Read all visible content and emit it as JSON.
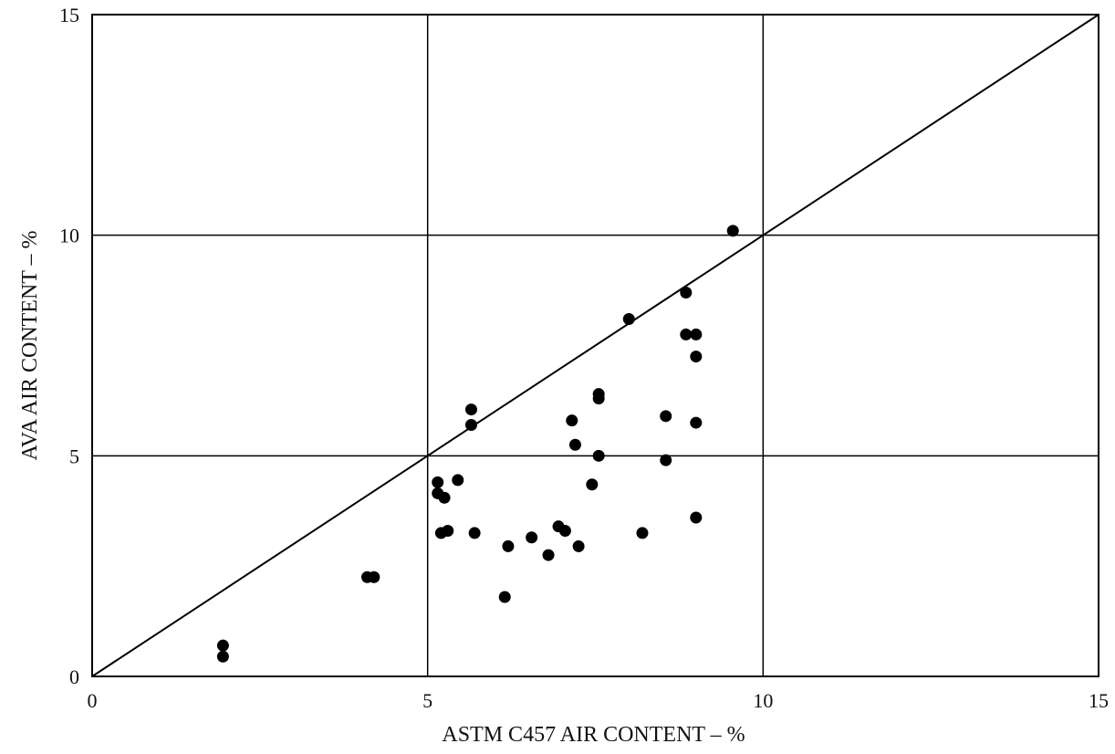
{
  "chart_data": {
    "type": "scatter",
    "title": "",
    "xlabel": "ASTM C457 AIR CONTENT – %",
    "ylabel": "AVA AIR CONTENT – %",
    "xlim": [
      0,
      15
    ],
    "ylim": [
      0,
      15
    ],
    "xticks": [
      "0",
      "5",
      "10",
      "15"
    ],
    "yticks": [
      "0",
      "5",
      "10",
      "15"
    ],
    "grid": true,
    "reference_line": {
      "x": [
        0,
        15
      ],
      "y": [
        0,
        15
      ]
    },
    "point_color": "#000000",
    "line_color": "#000000",
    "series": [
      {
        "points": [
          {
            "x": 1.95,
            "y": 0.45
          },
          {
            "x": 1.95,
            "y": 0.7
          },
          {
            "x": 4.1,
            "y": 2.25
          },
          {
            "x": 4.2,
            "y": 2.25
          },
          {
            "x": 5.15,
            "y": 4.4
          },
          {
            "x": 5.15,
            "y": 4.15
          },
          {
            "x": 5.25,
            "y": 4.05
          },
          {
            "x": 5.2,
            "y": 3.25
          },
          {
            "x": 5.3,
            "y": 3.3
          },
          {
            "x": 5.45,
            "y": 4.45
          },
          {
            "x": 5.65,
            "y": 5.7
          },
          {
            "x": 5.65,
            "y": 6.05
          },
          {
            "x": 5.7,
            "y": 3.25
          },
          {
            "x": 6.15,
            "y": 1.8
          },
          {
            "x": 6.2,
            "y": 2.95
          },
          {
            "x": 6.55,
            "y": 3.15
          },
          {
            "x": 6.8,
            "y": 2.75
          },
          {
            "x": 6.95,
            "y": 3.4
          },
          {
            "x": 7.05,
            "y": 3.3
          },
          {
            "x": 7.15,
            "y": 5.8
          },
          {
            "x": 7.2,
            "y": 5.25
          },
          {
            "x": 7.25,
            "y": 2.95
          },
          {
            "x": 7.45,
            "y": 4.35
          },
          {
            "x": 7.55,
            "y": 5.0
          },
          {
            "x": 7.55,
            "y": 6.3
          },
          {
            "x": 7.55,
            "y": 6.4
          },
          {
            "x": 8.0,
            "y": 8.1
          },
          {
            "x": 8.2,
            "y": 3.25
          },
          {
            "x": 8.55,
            "y": 4.9
          },
          {
            "x": 8.55,
            "y": 5.9
          },
          {
            "x": 8.85,
            "y": 7.75
          },
          {
            "x": 8.85,
            "y": 8.7
          },
          {
            "x": 9.0,
            "y": 7.75
          },
          {
            "x": 9.0,
            "y": 7.25
          },
          {
            "x": 9.0,
            "y": 5.75
          },
          {
            "x": 9.0,
            "y": 3.6
          },
          {
            "x": 9.55,
            "y": 10.1
          }
        ]
      }
    ]
  }
}
